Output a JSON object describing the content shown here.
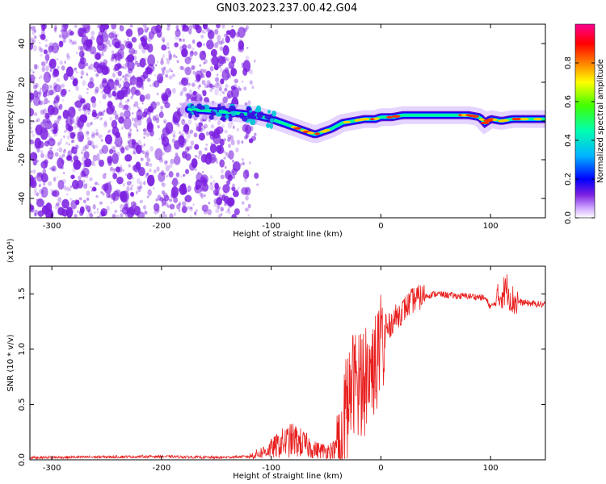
{
  "title": "GN03.2023.237.00.42.G04",
  "chart_data": [
    {
      "type": "heatmap",
      "xlabel": "Height of straight line (km)",
      "ylabel": "Frequency (Hz)",
      "xlim": [
        -320,
        150
      ],
      "ylim": [
        -50,
        50
      ],
      "xticks": [
        -300,
        -200,
        -100,
        0,
        100
      ],
      "yticks": [
        -40,
        -20,
        0,
        20,
        40
      ],
      "colorbar": {
        "label": "Normalized spectral amplitude",
        "range": [
          0.0,
          1.0
        ],
        "ticks": [
          0.0,
          0.2,
          0.4,
          0.6,
          0.8
        ],
        "tick_labels": [
          "0.0",
          "0.2",
          "0.4",
          "0.6",
          "0.8"
        ],
        "colormap": [
          "#ffffff",
          "#8a2be2",
          "#0000ff",
          "#00c8ff",
          "#00ff80",
          "#ffff00",
          "#ff8000",
          "#ff0000",
          "#ff00a0"
        ]
      },
      "noise_region": {
        "x": [
          -320,
          -125
        ],
        "color": "#7b1fe0"
      },
      "carrier_track": {
        "x": [
          -175,
          -150,
          -130,
          -115,
          -100,
          -90,
          -80,
          -70,
          -60,
          -55,
          -45,
          -35,
          -25,
          -15,
          -5,
          0,
          10,
          20,
          40,
          60,
          80,
          90,
          95,
          100,
          110,
          120,
          130,
          150
        ],
        "y": [
          6,
          5,
          4,
          3,
          1,
          -1,
          -3,
          -5,
          -7,
          -6,
          -4,
          -1,
          0,
          1,
          1,
          2,
          2,
          3,
          3,
          3,
          3,
          2,
          -1,
          1,
          0,
          1,
          1,
          1
        ]
      }
    },
    {
      "type": "line",
      "xlabel": "Height of straight line (km)",
      "ylabel": "SNR (10 * v/v)",
      "y_multiplier": "(x10⁴)",
      "xlim": [
        -320,
        150
      ],
      "ylim": [
        0,
        17500
      ],
      "xticks": [
        -300,
        -200,
        -100,
        0,
        100
      ],
      "yticks": [
        0,
        5000,
        10000,
        15000
      ],
      "ytick_labels": [
        "0.0",
        "0.5",
        "1.0",
        "1.5"
      ],
      "series": [
        {
          "color": "#e8201f",
          "x": [
            -320,
            -200,
            -150,
            -120,
            -110,
            -100,
            -90,
            -80,
            -70,
            -60,
            -50,
            -40,
            -35,
            -30,
            -25,
            -20,
            -15,
            -10,
            -5,
            0,
            10,
            20,
            30,
            40,
            50,
            60,
            70,
            80,
            90,
            95,
            100,
            105,
            110,
            115,
            120,
            130,
            140,
            150
          ],
          "y": [
            200,
            300,
            200,
            300,
            600,
            1000,
            1500,
            1800,
            1400,
            900,
            800,
            1000,
            3000,
            5000,
            7000,
            7500,
            7000,
            8000,
            9000,
            10500,
            12500,
            13500,
            14500,
            14800,
            15000,
            14900,
            14800,
            14800,
            14700,
            14600,
            13800,
            14200,
            15000,
            15500,
            14400,
            14200,
            14100,
            14000
          ]
        }
      ]
    }
  ]
}
